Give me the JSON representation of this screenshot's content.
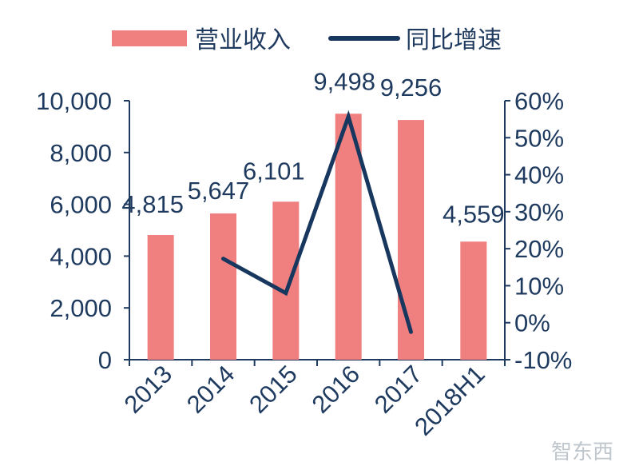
{
  "chart_data": {
    "type": "bar",
    "categories": [
      "2013",
      "2014",
      "2015",
      "2016",
      "2017",
      "2018H1"
    ],
    "series": [
      {
        "name": "营业收入",
        "type": "bar",
        "axis": "left",
        "values": [
          4815,
          5647,
          6101,
          9498,
          9256,
          4559
        ],
        "labels": [
          "4,815",
          "5,647",
          "6,101",
          "9,498",
          "9,256",
          "4,559"
        ]
      },
      {
        "name": "同比增速",
        "type": "line",
        "axis": "right",
        "values": [
          null,
          17.3,
          8.0,
          55.7,
          -2.5,
          null
        ]
      }
    ],
    "y_left": {
      "lim": [
        0,
        10000
      ],
      "ticks": [
        0,
        2000,
        4000,
        6000,
        8000,
        10000
      ],
      "tick_labels": [
        "0",
        "2,000",
        "4,000",
        "6,000",
        "8,000",
        "10,000"
      ]
    },
    "y_right": {
      "lim": [
        -10,
        60
      ],
      "ticks": [
        -10,
        0,
        10,
        20,
        30,
        40,
        50,
        60
      ],
      "tick_labels": [
        "-10%",
        "0%",
        "10%",
        "20%",
        "30%",
        "40%",
        "50%",
        "60%"
      ]
    },
    "colors": {
      "bar": "#f08080",
      "line": "#17375e",
      "axis": "#1f3a5f"
    },
    "legend_position": "top",
    "grid": false
  },
  "watermark": "智东西"
}
